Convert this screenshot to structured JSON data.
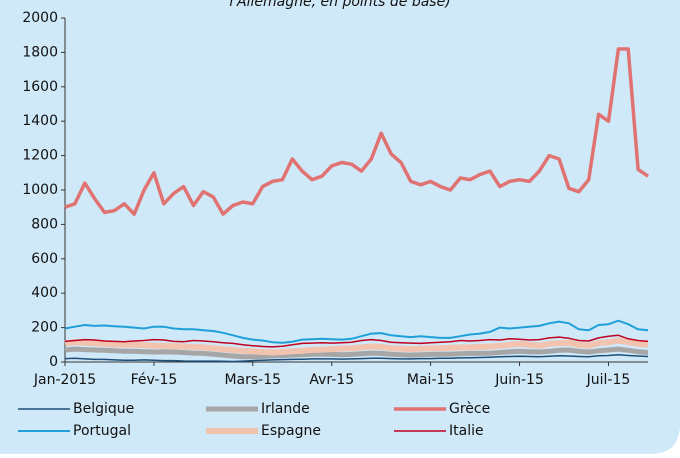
{
  "chart_data": {
    "type": "line",
    "subtitle": "l'Allemagne, en points de base)",
    "ylim": [
      0,
      2000
    ],
    "yticks": [
      0,
      200,
      400,
      600,
      800,
      1000,
      1200,
      1400,
      1600,
      1800,
      2000
    ],
    "xlim": [
      0,
      59
    ],
    "xticks": [
      {
        "value": 0,
        "label": "Jan-2015"
      },
      {
        "value": 9,
        "label": "Fév-15"
      },
      {
        "value": 19,
        "label": "Mars-15"
      },
      {
        "value": 27,
        "label": "Avr-15"
      },
      {
        "value": 37,
        "label": "Mai-15"
      },
      {
        "value": 46,
        "label": "Juin-15"
      },
      {
        "value": 55,
        "label": "Juil-15"
      }
    ],
    "series": [
      {
        "name": "Belgique",
        "color": "#1f4e79",
        "width": 1.5,
        "values": [
          20,
          22,
          18,
          15,
          15,
          12,
          10,
          10,
          12,
          10,
          8,
          8,
          6,
          5,
          5,
          5,
          4,
          3,
          5,
          8,
          10,
          12,
          14,
          15,
          16,
          18,
          18,
          18,
          17,
          18,
          20,
          22,
          22,
          20,
          18,
          18,
          20,
          20,
          22,
          22,
          24,
          25,
          26,
          28,
          30,
          32,
          34,
          32,
          30,
          34,
          36,
          35,
          32,
          30,
          36,
          38,
          42,
          38,
          35,
          32
        ]
      },
      {
        "name": "Irlande",
        "color": "#a6a6a6",
        "width": 5,
        "values": [
          70,
          75,
          72,
          70,
          68,
          65,
          62,
          62,
          60,
          58,
          60,
          58,
          55,
          52,
          50,
          45,
          40,
          35,
          30,
          30,
          32,
          35,
          38,
          40,
          42,
          45,
          45,
          44,
          42,
          44,
          48,
          52,
          50,
          45,
          42,
          40,
          42,
          44,
          45,
          46,
          48,
          50,
          50,
          52,
          55,
          60,
          62,
          60,
          58,
          62,
          68,
          70,
          62,
          58,
          65,
          70,
          75,
          68,
          60,
          55
        ]
      },
      {
        "name": "Grèce",
        "color": "#e07272",
        "width": 3.5,
        "values": [
          900,
          920,
          1040,
          950,
          870,
          880,
          920,
          860,
          1000,
          1100,
          920,
          980,
          1020,
          910,
          990,
          960,
          860,
          910,
          930,
          920,
          1020,
          1050,
          1060,
          1180,
          1110,
          1060,
          1080,
          1140,
          1160,
          1150,
          1110,
          1180,
          1330,
          1210,
          1160,
          1050,
          1030,
          1050,
          1020,
          1000,
          1070,
          1060,
          1090,
          1110,
          1020,
          1050,
          1060,
          1050,
          1110,
          1200,
          1180,
          1010,
          990,
          1060,
          1440,
          1400,
          1820,
          1820,
          1120,
          1080
        ]
      },
      {
        "name": "Portugal",
        "color": "#1fa0d8",
        "width": 2,
        "values": [
          195,
          205,
          215,
          210,
          212,
          208,
          205,
          200,
          195,
          205,
          205,
          195,
          190,
          190,
          185,
          180,
          170,
          155,
          140,
          130,
          125,
          115,
          112,
          118,
          130,
          132,
          135,
          132,
          130,
          135,
          150,
          165,
          168,
          155,
          150,
          145,
          150,
          145,
          140,
          140,
          150,
          160,
          165,
          175,
          200,
          195,
          200,
          205,
          210,
          225,
          235,
          225,
          190,
          185,
          215,
          220,
          240,
          220,
          190,
          185
        ]
      },
      {
        "name": "Espagne",
        "color": "#f2c4b0",
        "width": 6,
        "values": [
          110,
          115,
          112,
          108,
          105,
          102,
          100,
          100,
          98,
          95,
          95,
          92,
          90,
          88,
          85,
          80,
          75,
          70,
          65,
          62,
          58,
          55,
          58,
          62,
          65,
          70,
          72,
          75,
          78,
          80,
          85,
          90,
          88,
          80,
          78,
          75,
          78,
          80,
          80,
          82,
          85,
          85,
          88,
          90,
          95,
          100,
          105,
          100,
          95,
          105,
          110,
          112,
          100,
          95,
          110,
          115,
          125,
          115,
          105,
          100
        ]
      },
      {
        "name": "Italie",
        "color": "#c00020",
        "width": 1.5,
        "values": [
          120,
          125,
          130,
          128,
          122,
          120,
          118,
          122,
          125,
          130,
          128,
          120,
          118,
          125,
          122,
          118,
          112,
          108,
          100,
          95,
          90,
          88,
          92,
          100,
          108,
          110,
          112,
          110,
          112,
          115,
          125,
          130,
          125,
          115,
          112,
          110,
          108,
          112,
          115,
          118,
          125,
          122,
          125,
          130,
          128,
          135,
          132,
          128,
          130,
          140,
          145,
          138,
          125,
          122,
          140,
          150,
          155,
          135,
          125,
          120
        ]
      }
    ]
  }
}
